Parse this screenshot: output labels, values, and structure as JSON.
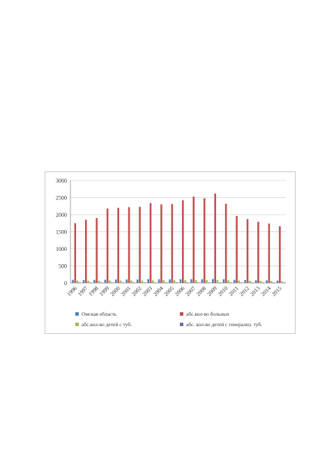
{
  "chart_data": {
    "type": "bar",
    "title": "",
    "xlabel": "",
    "ylabel": "",
    "ylim": [
      0,
      3000
    ],
    "yticks": [
      "0",
      "500",
      "1000",
      "1500",
      "2000",
      "2500",
      "3000"
    ],
    "grid": true,
    "legend_position": "bottom",
    "categories": [
      "1996",
      "1997",
      "1998",
      "1999",
      "2000",
      "2001",
      "2002",
      "2003",
      "2004",
      "2005",
      "2006",
      "2007",
      "2008",
      "2009",
      "2010",
      "2011",
      "2012",
      "2013",
      "2014",
      "2015"
    ],
    "series": [
      {
        "name": "Омская область",
        "color": "#4f81bd",
        "values": [
          90,
          85,
          90,
          95,
          100,
          100,
          100,
          110,
          110,
          105,
          110,
          110,
          110,
          115,
          110,
          90,
          85,
          80,
          75,
          70
        ]
      },
      {
        "name": "абс.кол-во больных",
        "color": "#c0504d",
        "values": [
          1750,
          1850,
          1900,
          2180,
          2200,
          2220,
          2230,
          2340,
          2300,
          2310,
          2420,
          2530,
          2480,
          2620,
          2320,
          1960,
          1870,
          1790,
          1740,
          1660
        ]
      },
      {
        "name": "абс.кол-во детей с туб.",
        "color": "#9bbb59",
        "values": [
          70,
          65,
          65,
          70,
          70,
          75,
          70,
          75,
          80,
          80,
          80,
          85,
          85,
          85,
          80,
          70,
          65,
          60,
          55,
          50
        ]
      },
      {
        "name": "абс. кол-во детей с генерализ. туб.",
        "color": "#8064a2",
        "values": [
          15,
          15,
          15,
          15,
          15,
          15,
          15,
          15,
          15,
          15,
          15,
          15,
          15,
          15,
          15,
          15,
          15,
          15,
          15,
          15
        ]
      }
    ]
  }
}
